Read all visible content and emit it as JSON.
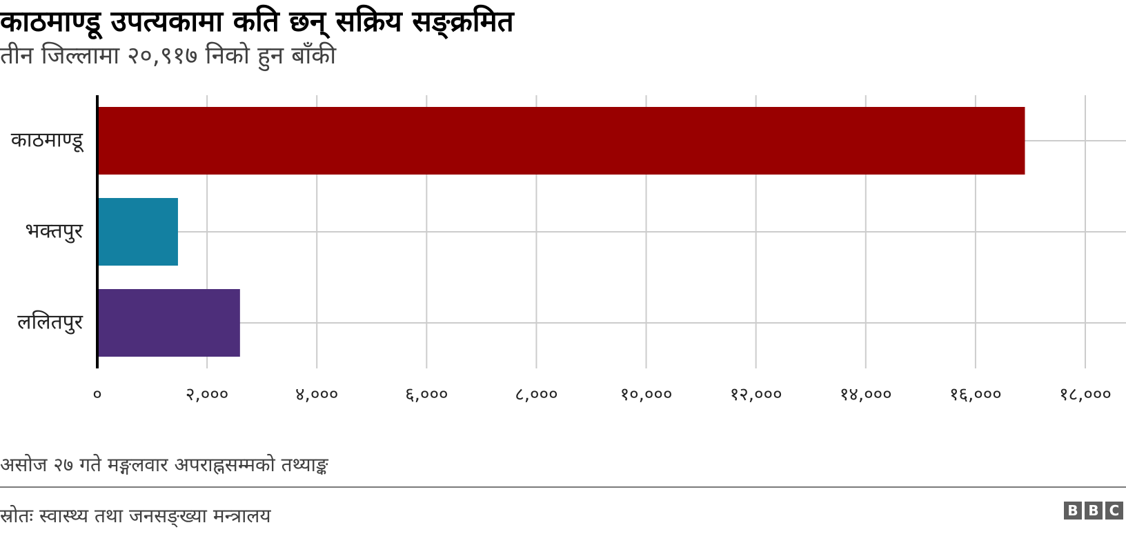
{
  "chart_data": {
    "type": "bar",
    "orientation": "horizontal",
    "title": "काठमाण्डू उपत्यकामा कति छन् सक्रिय सङ्क्रमित",
    "subtitle": "तीन जिल्लामा २०,९१७ निको हुन बाँकी",
    "categories": [
      "काठमाण्डू",
      "भक्तपुर",
      "ललितपुर"
    ],
    "values": [
      16900,
      1470,
      2600
    ],
    "bar_colors": [
      "#990000",
      "#1380a1",
      "#4d2e7a"
    ],
    "xlim": [
      0,
      18000
    ],
    "x_ticks": [
      0,
      2000,
      4000,
      6000,
      8000,
      10000,
      12000,
      14000,
      16000,
      18000
    ],
    "x_tick_labels": [
      "०",
      "२,०००",
      "४,०००",
      "६,०००",
      "८,०००",
      "१०,०००",
      "१२,०००",
      "१४,०००",
      "१६,०००",
      "१८,०००"
    ],
    "grid": true,
    "legend": "none",
    "note": "असोज २७ गते मङ्गलवार अपराह्नसम्मको तथ्याङ्क",
    "source": "स्रोतः स्वास्थ्य तथा जनसङ्ख्या मन्त्रालय"
  },
  "branding": {
    "logo_letters": [
      "B",
      "B",
      "C"
    ]
  }
}
